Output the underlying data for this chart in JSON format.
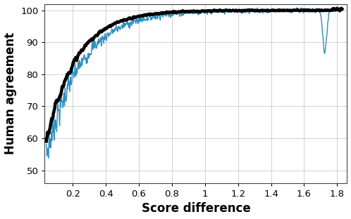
{
  "title": "",
  "xlabel": "Score difference",
  "ylabel": "Human agreement",
  "xlim": [
    0.03,
    1.86
  ],
  "ylim": [
    46,
    102
  ],
  "xticks": [
    0.2,
    0.4,
    0.6,
    0.8,
    1.0,
    1.2,
    1.4,
    1.6,
    1.8
  ],
  "yticks": [
    50,
    60,
    70,
    80,
    90,
    100
  ],
  "black_color": "#000000",
  "blue_color": "#2e8fc0",
  "black_linewidth": 3.2,
  "blue_linewidth": 1.0,
  "grid_color": "#d0d0d0",
  "background_color": "#ffffff",
  "seed": 7,
  "n_points": 1000
}
